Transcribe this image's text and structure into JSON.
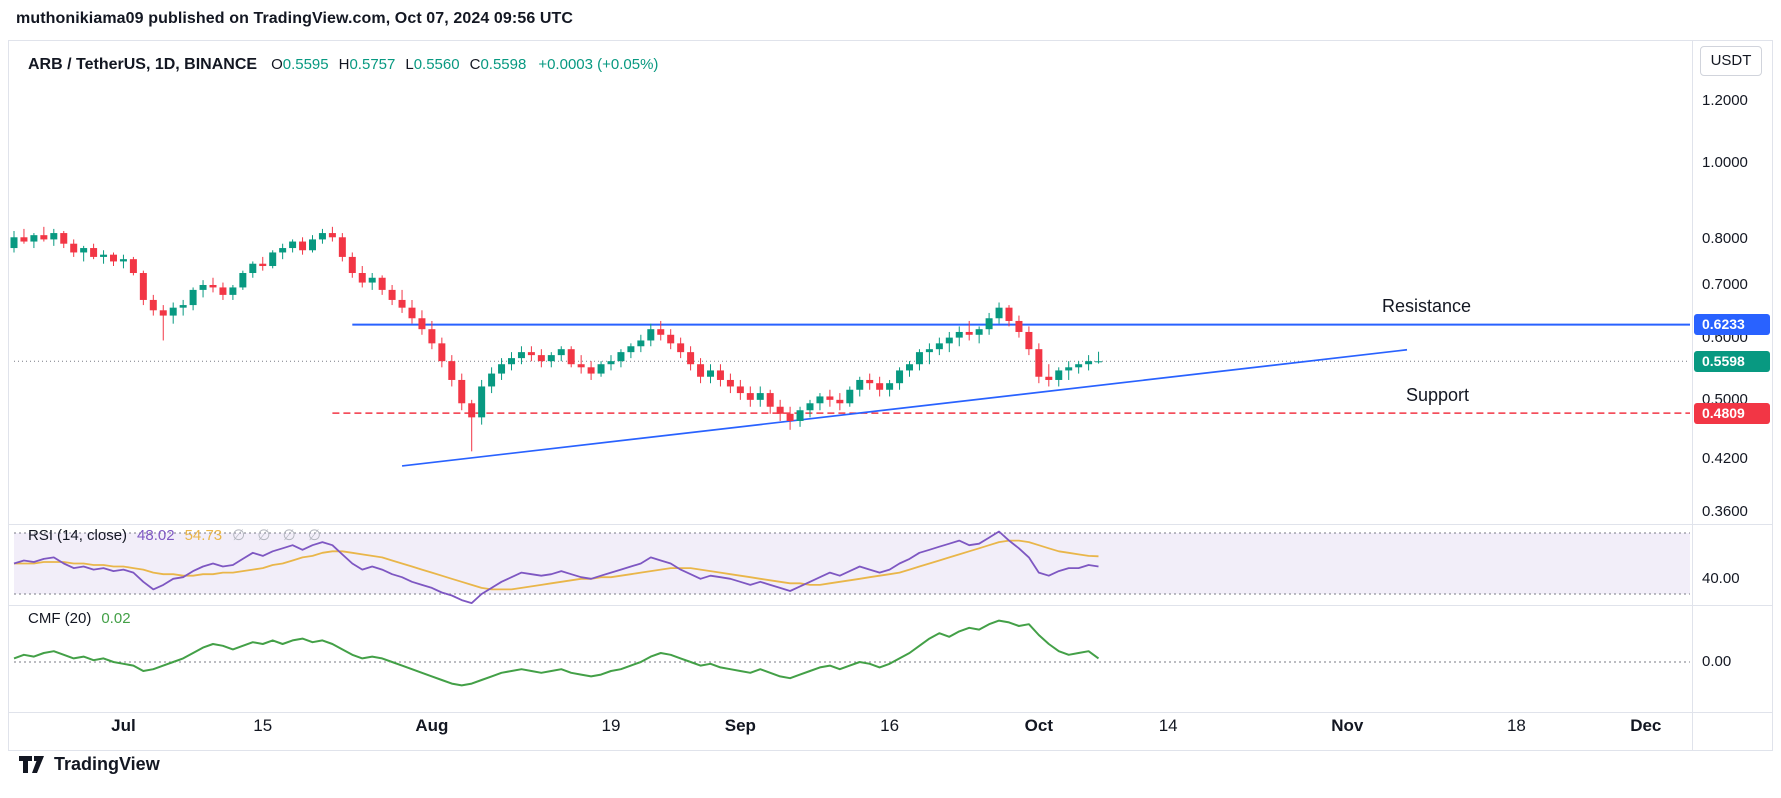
{
  "header": {
    "attribution": "muthonikiama09 published on TradingView.com, Oct 07, 2024 09:56 UTC"
  },
  "toolbar": {
    "currency_button": "USDT"
  },
  "legend": {
    "symbol": "ARB / TetherUS, 1D, BINANCE",
    "ohlc": [
      {
        "label": "O",
        "value": "0.5595"
      },
      {
        "label": "H",
        "value": "0.5757"
      },
      {
        "label": "L",
        "value": "0.5560"
      },
      {
        "label": "C",
        "value": "0.5598"
      }
    ],
    "change": "+0.0003 (+0.05%)"
  },
  "annotations": {
    "resistance_label": "Resistance",
    "support_label": "Support"
  },
  "rsi_legend": {
    "title": "RSI",
    "params": "(14, close)",
    "value_rsi": "48.02",
    "value_ma": "54.73",
    "empty_values": "∅ ∅ ∅ ∅"
  },
  "cmf_legend": {
    "title": "CMF (20)",
    "value": "0.02"
  },
  "footer": {
    "brand": "TradingView"
  },
  "colors": {
    "background": "#ffffff",
    "text": "#131722",
    "muted_text": "#b2b5be",
    "up": "#089981",
    "down": "#f23645",
    "resistance_line": "#2962ff",
    "support_line": "#f23645",
    "trendline": "#2962ff",
    "last_price_line": "#787b86",
    "rsi_line": "#7e57c2",
    "rsi_ma_line": "#e9b64a",
    "rsi_band_fill": "rgba(126,87,194,0.10)",
    "band_dash_line": "#787b86",
    "cmf_line": "#43a047",
    "separator": "#e0e3eb"
  },
  "chart_data": {
    "type": "candlestick",
    "title": "ARB / TetherUS, 1D, BINANCE",
    "interval": "1D",
    "grid": false,
    "price_axis": {
      "scale": "log",
      "ylim": [
        0.34,
        1.28
      ],
      "ticks": [
        "1.2000",
        "1.0000",
        "0.8000",
        "0.7000",
        "0.6000",
        "0.5000",
        "0.4200",
        "0.3600"
      ],
      "tick_values": [
        1.2,
        1.0,
        0.8,
        0.7,
        0.6,
        0.5,
        0.42,
        0.36
      ],
      "highlighted": [
        {
          "text": "0.6233",
          "value": 0.6233,
          "color": "#2962ff",
          "role": "resistance"
        },
        {
          "text": "0.5598",
          "value": 0.5598,
          "color": "#089981",
          "role": "last-price"
        },
        {
          "text": "0.4809",
          "value": 0.4809,
          "color": "#f23645",
          "role": "support"
        }
      ]
    },
    "x_axis": {
      "start_date": "2024-06-20",
      "ticks": [
        {
          "label": "Jul",
          "day": 11,
          "major": true
        },
        {
          "label": "15",
          "day": 25,
          "major": false
        },
        {
          "label": "Aug",
          "day": 42,
          "major": true
        },
        {
          "label": "19",
          "day": 60,
          "major": false
        },
        {
          "label": "Sep",
          "day": 73,
          "major": true
        },
        {
          "label": "16",
          "day": 88,
          "major": false
        },
        {
          "label": "Oct",
          "day": 103,
          "major": true
        },
        {
          "label": "14",
          "day": 116,
          "major": false
        },
        {
          "label": "Nov",
          "day": 134,
          "major": true
        },
        {
          "label": "18",
          "day": 151,
          "major": false
        },
        {
          "label": "Dec",
          "day": 164,
          "major": true
        }
      ]
    },
    "candles": [
      [
        0.78,
        0.82,
        0.77,
        0.805
      ],
      [
        0.805,
        0.825,
        0.79,
        0.795
      ],
      [
        0.795,
        0.815,
        0.78,
        0.81
      ],
      [
        0.81,
        0.83,
        0.795,
        0.8
      ],
      [
        0.8,
        0.825,
        0.785,
        0.815
      ],
      [
        0.815,
        0.82,
        0.78,
        0.79
      ],
      [
        0.79,
        0.8,
        0.76,
        0.77
      ],
      [
        0.77,
        0.785,
        0.75,
        0.78
      ],
      [
        0.78,
        0.79,
        0.755,
        0.76
      ],
      [
        0.76,
        0.775,
        0.745,
        0.765
      ],
      [
        0.765,
        0.77,
        0.74,
        0.75
      ],
      [
        0.75,
        0.765,
        0.735,
        0.755
      ],
      [
        0.755,
        0.76,
        0.72,
        0.725
      ],
      [
        0.725,
        0.73,
        0.66,
        0.67
      ],
      [
        0.67,
        0.68,
        0.64,
        0.65
      ],
      [
        0.65,
        0.66,
        0.595,
        0.64
      ],
      [
        0.64,
        0.665,
        0.625,
        0.655
      ],
      [
        0.655,
        0.67,
        0.64,
        0.66
      ],
      [
        0.66,
        0.695,
        0.65,
        0.69
      ],
      [
        0.69,
        0.71,
        0.675,
        0.7
      ],
      [
        0.7,
        0.715,
        0.685,
        0.695
      ],
      [
        0.695,
        0.705,
        0.67,
        0.68
      ],
      [
        0.68,
        0.7,
        0.67,
        0.695
      ],
      [
        0.695,
        0.73,
        0.69,
        0.725
      ],
      [
        0.725,
        0.75,
        0.715,
        0.745
      ],
      [
        0.745,
        0.76,
        0.73,
        0.74
      ],
      [
        0.74,
        0.775,
        0.735,
        0.77
      ],
      [
        0.77,
        0.79,
        0.755,
        0.78
      ],
      [
        0.78,
        0.8,
        0.77,
        0.795
      ],
      [
        0.795,
        0.805,
        0.765,
        0.775
      ],
      [
        0.775,
        0.81,
        0.77,
        0.8
      ],
      [
        0.8,
        0.825,
        0.79,
        0.815
      ],
      [
        0.815,
        0.83,
        0.795,
        0.805
      ],
      [
        0.805,
        0.815,
        0.75,
        0.76
      ],
      [
        0.76,
        0.77,
        0.715,
        0.725
      ],
      [
        0.725,
        0.74,
        0.695,
        0.705
      ],
      [
        0.705,
        0.725,
        0.69,
        0.715
      ],
      [
        0.715,
        0.72,
        0.68,
        0.69
      ],
      [
        0.69,
        0.7,
        0.66,
        0.67
      ],
      [
        0.67,
        0.69,
        0.645,
        0.655
      ],
      [
        0.655,
        0.67,
        0.625,
        0.635
      ],
      [
        0.635,
        0.65,
        0.605,
        0.615
      ],
      [
        0.615,
        0.63,
        0.58,
        0.59
      ],
      [
        0.59,
        0.6,
        0.55,
        0.56
      ],
      [
        0.56,
        0.57,
        0.52,
        0.53
      ],
      [
        0.53,
        0.54,
        0.485,
        0.495
      ],
      [
        0.495,
        0.5,
        0.43,
        0.475
      ],
      [
        0.475,
        0.53,
        0.465,
        0.52
      ],
      [
        0.52,
        0.55,
        0.51,
        0.54
      ],
      [
        0.54,
        0.565,
        0.53,
        0.555
      ],
      [
        0.555,
        0.575,
        0.545,
        0.565
      ],
      [
        0.565,
        0.585,
        0.555,
        0.575
      ],
      [
        0.575,
        0.585,
        0.56,
        0.57
      ],
      [
        0.57,
        0.58,
        0.55,
        0.56
      ],
      [
        0.56,
        0.575,
        0.55,
        0.57
      ],
      [
        0.57,
        0.585,
        0.56,
        0.58
      ],
      [
        0.58,
        0.585,
        0.55,
        0.555
      ],
      [
        0.555,
        0.57,
        0.54,
        0.55
      ],
      [
        0.55,
        0.56,
        0.53,
        0.54
      ],
      [
        0.54,
        0.56,
        0.535,
        0.555
      ],
      [
        0.555,
        0.57,
        0.545,
        0.56
      ],
      [
        0.56,
        0.58,
        0.55,
        0.575
      ],
      [
        0.575,
        0.59,
        0.565,
        0.585
      ],
      [
        0.585,
        0.605,
        0.575,
        0.595
      ],
      [
        0.595,
        0.625,
        0.585,
        0.615
      ],
      [
        0.615,
        0.63,
        0.595,
        0.605
      ],
      [
        0.605,
        0.615,
        0.58,
        0.59
      ],
      [
        0.59,
        0.6,
        0.565,
        0.575
      ],
      [
        0.575,
        0.585,
        0.545,
        0.555
      ],
      [
        0.555,
        0.565,
        0.525,
        0.535
      ],
      [
        0.535,
        0.555,
        0.525,
        0.545
      ],
      [
        0.545,
        0.555,
        0.52,
        0.53
      ],
      [
        0.53,
        0.54,
        0.51,
        0.52
      ],
      [
        0.52,
        0.53,
        0.5,
        0.51
      ],
      [
        0.51,
        0.52,
        0.49,
        0.5
      ],
      [
        0.5,
        0.52,
        0.49,
        0.51
      ],
      [
        0.51,
        0.515,
        0.48,
        0.49
      ],
      [
        0.49,
        0.5,
        0.47,
        0.48
      ],
      [
        0.48,
        0.49,
        0.458,
        0.47
      ],
      [
        0.47,
        0.49,
        0.462,
        0.485
      ],
      [
        0.485,
        0.5,
        0.475,
        0.495
      ],
      [
        0.495,
        0.51,
        0.485,
        0.505
      ],
      [
        0.505,
        0.515,
        0.49,
        0.5
      ],
      [
        0.5,
        0.51,
        0.485,
        0.495
      ],
      [
        0.495,
        0.52,
        0.49,
        0.515
      ],
      [
        0.515,
        0.535,
        0.505,
        0.53
      ],
      [
        0.53,
        0.54,
        0.515,
        0.525
      ],
      [
        0.525,
        0.535,
        0.505,
        0.515
      ],
      [
        0.515,
        0.53,
        0.505,
        0.525
      ],
      [
        0.525,
        0.55,
        0.515,
        0.545
      ],
      [
        0.545,
        0.56,
        0.535,
        0.555
      ],
      [
        0.555,
        0.58,
        0.545,
        0.575
      ],
      [
        0.575,
        0.59,
        0.555,
        0.58
      ],
      [
        0.58,
        0.6,
        0.57,
        0.59
      ],
      [
        0.59,
        0.61,
        0.575,
        0.6
      ],
      [
        0.6,
        0.62,
        0.585,
        0.61
      ],
      [
        0.61,
        0.63,
        0.595,
        0.605
      ],
      [
        0.605,
        0.62,
        0.59,
        0.615
      ],
      [
        0.615,
        0.645,
        0.605,
        0.635
      ],
      [
        0.635,
        0.665,
        0.625,
        0.655
      ],
      [
        0.655,
        0.66,
        0.62,
        0.63
      ],
      [
        0.63,
        0.64,
        0.6,
        0.61
      ],
      [
        0.61,
        0.62,
        0.57,
        0.58
      ],
      [
        0.58,
        0.59,
        0.525,
        0.535
      ],
      [
        0.535,
        0.555,
        0.52,
        0.53
      ],
      [
        0.53,
        0.55,
        0.52,
        0.545
      ],
      [
        0.545,
        0.56,
        0.53,
        0.55
      ],
      [
        0.55,
        0.56,
        0.54,
        0.555
      ],
      [
        0.555,
        0.57,
        0.545,
        0.56
      ],
      [
        0.5595,
        0.5757,
        0.556,
        0.5598
      ]
    ],
    "lines": {
      "resistance": {
        "price": 0.6233,
        "start_day": 34,
        "style": "solid"
      },
      "support": {
        "price": 0.4809,
        "start_day": 32,
        "style": "dashed"
      },
      "trendline": {
        "p1": {
          "day": 39,
          "price": 0.412
        },
        "p2": {
          "day": 140,
          "price": 0.579
        },
        "style": "solid"
      },
      "last_price_line": {
        "price": 0.5598,
        "style": "dotted"
      }
    },
    "rsi": {
      "period": 14,
      "source": "close",
      "bands": {
        "upper": 70,
        "lower": 30
      },
      "axis_label": "40.00",
      "values": [
        50,
        52,
        51,
        53,
        54,
        50,
        47,
        48,
        46,
        47,
        45,
        46,
        44,
        38,
        33,
        36,
        40,
        41,
        45,
        48,
        50,
        48,
        49,
        53,
        57,
        55,
        58,
        60,
        62,
        59,
        62,
        64,
        62,
        56,
        50,
        46,
        48,
        46,
        43,
        41,
        38,
        36,
        34,
        31,
        29,
        26,
        24,
        30,
        34,
        38,
        41,
        44,
        43,
        42,
        43,
        45,
        43,
        41,
        40,
        42,
        44,
        46,
        48,
        50,
        54,
        52,
        50,
        46,
        43,
        40,
        42,
        41,
        40,
        38,
        36,
        38,
        36,
        34,
        32,
        35,
        38,
        41,
        44,
        42,
        45,
        48,
        46,
        44,
        46,
        50,
        53,
        57,
        59,
        61,
        63,
        65,
        62,
        63,
        67,
        71,
        65,
        60,
        54,
        44,
        42,
        45,
        47,
        47,
        49,
        48.02
      ],
      "ma_values": [
        50,
        50,
        50,
        51,
        51,
        51,
        50,
        50,
        49,
        49,
        48,
        48,
        47,
        46,
        44,
        43,
        43,
        42,
        42,
        43,
        43,
        44,
        44,
        45,
        46,
        47,
        49,
        50,
        52,
        54,
        55,
        57,
        58,
        58,
        57,
        56,
        55,
        54,
        52,
        50,
        48,
        46,
        44,
        42,
        40,
        38,
        36,
        34,
        33,
        33,
        33,
        34,
        35,
        36,
        37,
        38,
        39,
        40,
        40,
        41,
        41,
        42,
        43,
        44,
        45,
        46,
        47,
        47,
        47,
        46,
        45,
        44,
        43,
        42,
        41,
        40,
        39,
        38,
        37,
        37,
        36,
        36,
        37,
        38,
        39,
        40,
        41,
        42,
        43,
        44,
        46,
        48,
        50,
        52,
        54,
        56,
        58,
        60,
        62,
        64,
        65,
        65,
        64,
        62,
        60,
        58,
        57,
        56,
        55,
        54.73
      ]
    },
    "cmf": {
      "period": 20,
      "axis_label": "0.00",
      "values": [
        0.02,
        0.04,
        0.03,
        0.05,
        0.06,
        0.04,
        0.02,
        0.03,
        0.01,
        0.02,
        0.0,
        -0.01,
        -0.02,
        -0.05,
        -0.04,
        -0.02,
        0.0,
        0.02,
        0.05,
        0.08,
        0.1,
        0.09,
        0.07,
        0.09,
        0.11,
        0.1,
        0.12,
        0.1,
        0.12,
        0.13,
        0.11,
        0.12,
        0.1,
        0.07,
        0.04,
        0.02,
        0.03,
        0.02,
        0.0,
        -0.02,
        -0.04,
        -0.06,
        -0.08,
        -0.1,
        -0.12,
        -0.13,
        -0.12,
        -0.1,
        -0.08,
        -0.06,
        -0.05,
        -0.04,
        -0.05,
        -0.06,
        -0.05,
        -0.04,
        -0.06,
        -0.07,
        -0.08,
        -0.07,
        -0.05,
        -0.04,
        -0.02,
        0.0,
        0.03,
        0.05,
        0.04,
        0.02,
        0.0,
        -0.02,
        -0.01,
        -0.03,
        -0.04,
        -0.05,
        -0.06,
        -0.04,
        -0.06,
        -0.08,
        -0.09,
        -0.07,
        -0.05,
        -0.03,
        -0.02,
        -0.04,
        -0.02,
        0.0,
        -0.01,
        -0.03,
        -0.01,
        0.02,
        0.05,
        0.09,
        0.13,
        0.16,
        0.14,
        0.17,
        0.19,
        0.18,
        0.21,
        0.23,
        0.22,
        0.2,
        0.21,
        0.15,
        0.1,
        0.06,
        0.04,
        0.05,
        0.06,
        0.02
      ]
    }
  }
}
